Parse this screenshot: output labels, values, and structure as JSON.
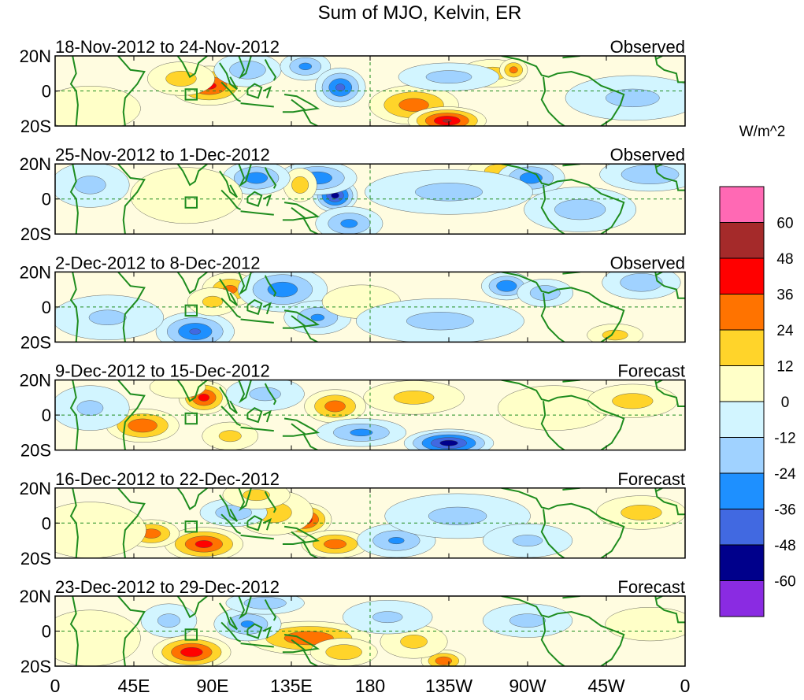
{
  "chart_data": {
    "type": "heatmap",
    "title": "Sum of MJO, Kelvin, ER",
    "colorbar": {
      "units": "W/m^2",
      "tick_labels": [
        "60",
        "48",
        "36",
        "24",
        "12",
        "0",
        "-12",
        "-24",
        "-36",
        "-48",
        "-60"
      ],
      "levels": [
        60,
        48,
        36,
        24,
        12,
        0,
        -12,
        -24,
        -36,
        -48,
        -60
      ],
      "colors": [
        "#ff69b4",
        "#a52a2a",
        "#ff0000",
        "#ff7300",
        "#ffd42a",
        "#ffffc8",
        "#d2f5ff",
        "#a0d2ff",
        "#1e90ff",
        "#4169e1",
        "#00008b",
        "#8a2be2"
      ]
    },
    "x_tick_labels": [
      "0",
      "45E",
      "90E",
      "135E",
      "180",
      "135W",
      "90W",
      "45W",
      "0"
    ],
    "x_ticks_deg": [
      0,
      45,
      90,
      135,
      180,
      225,
      270,
      315,
      360
    ],
    "y_tick_labels": [
      "20N",
      "0",
      "20S"
    ],
    "y_ticks_deg": [
      20,
      0,
      -20
    ],
    "xlim": [
      0,
      360
    ],
    "ylim": [
      -20,
      20
    ],
    "panels": [
      {
        "period": "18-Nov-2012 to 24-Nov-2012",
        "status": "Observed",
        "blobs": [
          {
            "lon": 88,
            "lat": 3,
            "value": 38,
            "rlon": 14,
            "rlat": 7
          },
          {
            "lon": 72,
            "lat": 7,
            "value": 16,
            "rlon": 12,
            "rlat": 6
          },
          {
            "lon": 110,
            "lat": 12,
            "value": -20,
            "rlon": 12,
            "rlat": 6
          },
          {
            "lon": 143,
            "lat": 14,
            "value": -26,
            "rlon": 9,
            "rlat": 5
          },
          {
            "lon": 163,
            "lat": 2,
            "value": -38,
            "rlon": 9,
            "rlat": 7
          },
          {
            "lon": 205,
            "lat": -8,
            "value": 30,
            "rlon": 16,
            "rlat": 7
          },
          {
            "lon": 224,
            "lat": -17,
            "value": 48,
            "rlon": 14,
            "rlat": 5
          },
          {
            "lon": 250,
            "lat": 10,
            "value": 16,
            "rlon": 12,
            "rlat": 5
          },
          {
            "lon": 262,
            "lat": 12,
            "value": 28,
            "rlon": 5,
            "rlat": 4
          },
          {
            "lon": 225,
            "lat": 8,
            "value": -16,
            "rlon": 18,
            "rlat": 5
          },
          {
            "lon": 330,
            "lat": -4,
            "value": -14,
            "rlon": 24,
            "rlat": 8
          },
          {
            "lon": 20,
            "lat": -10,
            "value": 6,
            "rlon": 18,
            "rlat": 8
          }
        ]
      },
      {
        "period": "25-Nov-2012 to 1-Dec-2012",
        "status": "Observed",
        "blobs": [
          {
            "lon": 160,
            "lat": 2,
            "value": -52,
            "rlon": 8,
            "rlat": 6
          },
          {
            "lon": 150,
            "lat": 12,
            "value": -32,
            "rlon": 14,
            "rlat": 6
          },
          {
            "lon": 140,
            "lat": 8,
            "value": 18,
            "rlon": 6,
            "rlat": 6
          },
          {
            "lon": 115,
            "lat": 12,
            "value": -30,
            "rlon": 12,
            "rlat": 6
          },
          {
            "lon": 168,
            "lat": -14,
            "value": -26,
            "rlon": 12,
            "rlat": 6
          },
          {
            "lon": 255,
            "lat": 16,
            "value": 18,
            "rlon": 12,
            "rlat": 5
          },
          {
            "lon": 272,
            "lat": 12,
            "value": -30,
            "rlon": 12,
            "rlat": 6
          },
          {
            "lon": 225,
            "lat": 4,
            "value": -14,
            "rlon": 30,
            "rlat": 8
          },
          {
            "lon": 300,
            "lat": -6,
            "value": -16,
            "rlon": 20,
            "rlat": 8
          },
          {
            "lon": 340,
            "lat": 14,
            "value": -22,
            "rlon": 18,
            "rlat": 6
          },
          {
            "lon": 75,
            "lat": 2,
            "value": 8,
            "rlon": 20,
            "rlat": 10
          },
          {
            "lon": 20,
            "lat": 8,
            "value": -14,
            "rlon": 14,
            "rlat": 8
          }
        ]
      },
      {
        "period": "2-Dec-2012 to 8-Dec-2012",
        "status": "Observed",
        "blobs": [
          {
            "lon": 80,
            "lat": -14,
            "value": -36,
            "rlon": 14,
            "rlat": 7
          },
          {
            "lon": 100,
            "lat": 10,
            "value": 26,
            "rlon": 10,
            "rlat": 6
          },
          {
            "lon": 90,
            "lat": 3,
            "value": 14,
            "rlon": 9,
            "rlat": 5
          },
          {
            "lon": 130,
            "lat": 10,
            "value": -30,
            "rlon": 16,
            "rlat": 8
          },
          {
            "lon": 150,
            "lat": -6,
            "value": -24,
            "rlon": 12,
            "rlat": 6
          },
          {
            "lon": 175,
            "lat": 3,
            "value": 10,
            "rlon": 14,
            "rlat": 6
          },
          {
            "lon": 258,
            "lat": 12,
            "value": -34,
            "rlon": 9,
            "rlat": 5
          },
          {
            "lon": 280,
            "lat": 8,
            "value": -20,
            "rlon": 10,
            "rlat": 5
          },
          {
            "lon": 335,
            "lat": 14,
            "value": -20,
            "rlon": 14,
            "rlat": 6
          },
          {
            "lon": 320,
            "lat": -16,
            "value": 16,
            "rlon": 10,
            "rlat": 4
          },
          {
            "lon": 220,
            "lat": -8,
            "value": -14,
            "rlon": 30,
            "rlat": 8
          },
          {
            "lon": 30,
            "lat": -6,
            "value": -12,
            "rlon": 20,
            "rlat": 8
          }
        ]
      },
      {
        "period": "9-Dec-2012 to 15-Dec-2012",
        "status": "Forecast",
        "blobs": [
          {
            "lon": 85,
            "lat": 10,
            "value": 40,
            "rlon": 9,
            "rlat": 6
          },
          {
            "lon": 50,
            "lat": -6,
            "value": 34,
            "rlon": 13,
            "rlat": 6
          },
          {
            "lon": 100,
            "lat": -12,
            "value": 14,
            "rlon": 10,
            "rlat": 5
          },
          {
            "lon": 160,
            "lat": 5,
            "value": 30,
            "rlon": 11,
            "rlat": 6
          },
          {
            "lon": 175,
            "lat": -10,
            "value": -26,
            "rlon": 16,
            "rlat": 5
          },
          {
            "lon": 225,
            "lat": -16,
            "value": -54,
            "rlon": 16,
            "rlat": 5
          },
          {
            "lon": 205,
            "lat": 10,
            "value": 14,
            "rlon": 18,
            "rlat": 6
          },
          {
            "lon": 120,
            "lat": 12,
            "value": -14,
            "rlon": 14,
            "rlat": 6
          },
          {
            "lon": 285,
            "lat": 4,
            "value": 10,
            "rlon": 20,
            "rlat": 8
          },
          {
            "lon": 330,
            "lat": 8,
            "value": 16,
            "rlon": 16,
            "rlat": 6
          },
          {
            "lon": 20,
            "lat": 4,
            "value": -12,
            "rlon": 14,
            "rlat": 8
          },
          {
            "lon": 70,
            "lat": 16,
            "value": 10,
            "rlon": 10,
            "rlat": 4
          }
        ]
      },
      {
        "period": "16-Dec-2012 to 22-Dec-2012",
        "status": "Forecast",
        "blobs": [
          {
            "lon": 142,
            "lat": 2,
            "value": 46,
            "rlon": 10,
            "rlat": 6
          },
          {
            "lon": 125,
            "lat": 6,
            "value": 16,
            "rlon": 14,
            "rlat": 8
          },
          {
            "lon": 85,
            "lat": -12,
            "value": 40,
            "rlon": 14,
            "rlat": 6
          },
          {
            "lon": 55,
            "lat": -6,
            "value": 30,
            "rlon": 10,
            "rlat": 5
          },
          {
            "lon": 160,
            "lat": -12,
            "value": 30,
            "rlon": 12,
            "rlat": 5
          },
          {
            "lon": 195,
            "lat": -10,
            "value": -24,
            "rlon": 14,
            "rlat": 6
          },
          {
            "lon": 102,
            "lat": 6,
            "value": -20,
            "rlon": 12,
            "rlat": 5
          },
          {
            "lon": 115,
            "lat": 16,
            "value": 14,
            "rlon": 12,
            "rlat": 5
          },
          {
            "lon": 335,
            "lat": 6,
            "value": 16,
            "rlon": 16,
            "rlat": 6
          },
          {
            "lon": 230,
            "lat": 4,
            "value": -14,
            "rlon": 26,
            "rlat": 8
          },
          {
            "lon": 270,
            "lat": -10,
            "value": -12,
            "rlon": 16,
            "rlat": 6
          },
          {
            "lon": 20,
            "lat": -4,
            "value": 8,
            "rlon": 20,
            "rlat": 10
          }
        ]
      },
      {
        "period": "23-Dec-2012 to 29-Dec-2012",
        "status": "Forecast",
        "blobs": [
          {
            "lon": 78,
            "lat": -12,
            "value": 44,
            "rlon": 14,
            "rlat": 6
          },
          {
            "lon": 145,
            "lat": -4,
            "value": 34,
            "rlon": 22,
            "rlat": 6
          },
          {
            "lon": 165,
            "lat": -12,
            "value": 20,
            "rlon": 12,
            "rlat": 5
          },
          {
            "lon": 110,
            "lat": 4,
            "value": -24,
            "rlon": 12,
            "rlat": 6
          },
          {
            "lon": 65,
            "lat": 6,
            "value": -14,
            "rlon": 10,
            "rlat": 6
          },
          {
            "lon": 120,
            "lat": 16,
            "value": -20,
            "rlon": 14,
            "rlat": 4
          },
          {
            "lon": 222,
            "lat": -17,
            "value": 32,
            "rlon": 8,
            "rlat": 4
          },
          {
            "lon": 205,
            "lat": -6,
            "value": 14,
            "rlon": 12,
            "rlat": 6
          },
          {
            "lon": 190,
            "lat": 8,
            "value": -12,
            "rlon": 16,
            "rlat": 6
          },
          {
            "lon": 270,
            "lat": 6,
            "value": -14,
            "rlon": 16,
            "rlat": 6
          },
          {
            "lon": 20,
            "lat": -4,
            "value": 10,
            "rlon": 18,
            "rlat": 10
          },
          {
            "lon": 340,
            "lat": 4,
            "value": 8,
            "rlon": 16,
            "rlat": 6
          }
        ]
      }
    ]
  }
}
